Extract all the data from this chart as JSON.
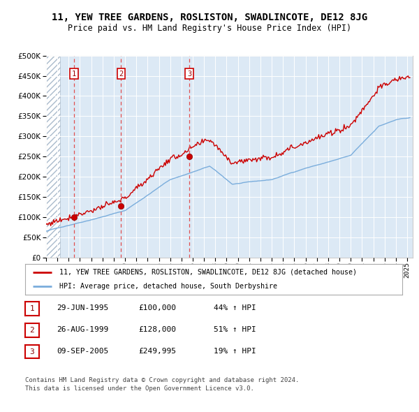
{
  "title": "11, YEW TREE GARDENS, ROSLISTON, SWADLINCOTE, DE12 8JG",
  "subtitle": "Price paid vs. HM Land Registry's House Price Index (HPI)",
  "sale_dates_str": [
    "1995-06-29",
    "1999-08-26",
    "2005-09-09"
  ],
  "sale_prices": [
    100000,
    128000,
    249995
  ],
  "sale_labels": [
    "1",
    "2",
    "3"
  ],
  "legend_property": "11, YEW TREE GARDENS, ROSLISTON, SWADLINCOTE, DE12 8JG (detached house)",
  "legend_hpi": "HPI: Average price, detached house, South Derbyshire",
  "table_rows": [
    [
      "1",
      "29-JUN-1995",
      "£100,000",
      "44% ↑ HPI"
    ],
    [
      "2",
      "26-AUG-1999",
      "£128,000",
      "51% ↑ HPI"
    ],
    [
      "3",
      "09-SEP-2005",
      "£249,995",
      "19% ↑ HPI"
    ]
  ],
  "footer": "Contains HM Land Registry data © Crown copyright and database right 2024.\nThis data is licensed under the Open Government Licence v3.0.",
  "ylim": [
    0,
    500000
  ],
  "yticks": [
    0,
    50000,
    100000,
    150000,
    200000,
    250000,
    300000,
    350000,
    400000,
    450000,
    500000
  ],
  "property_color": "#cc0000",
  "hpi_color": "#7aaddc",
  "vline_color": "#e05050",
  "bg_color": "#dce9f5",
  "hatch_color": "#aabbcc",
  "grid_color": "#ffffff",
  "dot_color": "#cc0000",
  "title_fontsize": 10,
  "subtitle_fontsize": 9
}
